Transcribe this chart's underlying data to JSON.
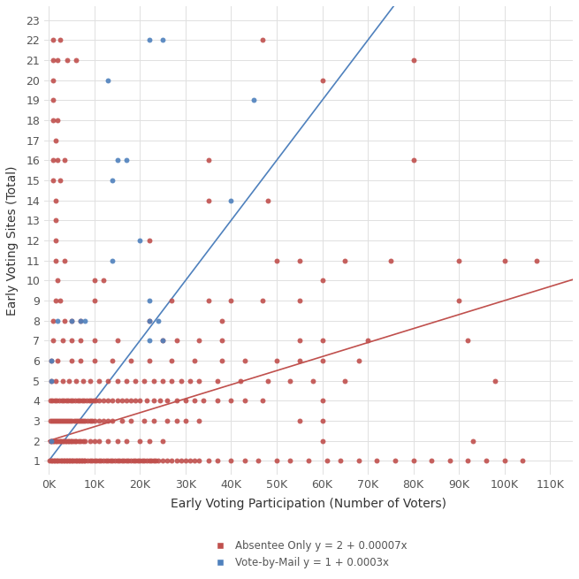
{
  "xlabel": "Early Voting Participation (Number of Voters)",
  "ylabel": "Early Voting Sites (Total)",
  "background_color": "#ffffff",
  "grid_color": "#e0e0e0",
  "red_color": "#c0504d",
  "blue_color": "#4f81bd",
  "red_label": "Absentee Only y = 2 + 0.00007x",
  "blue_label": "Vote-by-Mail y = 1 + 0.0003x",
  "red_intercept": 2,
  "red_slope": 7e-05,
  "blue_intercept": 1,
  "blue_slope": 0.0003,
  "xlim": [
    -1000,
    115000
  ],
  "ylim": [
    0.3,
    23.7
  ],
  "yticks": [
    1,
    2,
    3,
    4,
    5,
    6,
    7,
    8,
    9,
    10,
    11,
    12,
    13,
    14,
    15,
    16,
    17,
    18,
    19,
    20,
    21,
    22,
    23
  ],
  "xtick_vals": [
    0,
    10000,
    20000,
    30000,
    40000,
    50000,
    60000,
    70000,
    80000,
    90000,
    100000,
    110000
  ],
  "xtick_labels": [
    "0K",
    "10K",
    "20K",
    "30K",
    "40K",
    "50K",
    "60K",
    "70K",
    "80K",
    "90K",
    "100K",
    "110K"
  ],
  "red_points": [
    [
      1000,
      22
    ],
    [
      2500,
      22
    ],
    [
      47000,
      22
    ],
    [
      1000,
      21
    ],
    [
      2000,
      21
    ],
    [
      4000,
      21
    ],
    [
      6000,
      21
    ],
    [
      80000,
      21
    ],
    [
      1000,
      20
    ],
    [
      60000,
      20
    ],
    [
      1000,
      19
    ],
    [
      1000,
      18
    ],
    [
      2000,
      18
    ],
    [
      1500,
      17
    ],
    [
      1000,
      16
    ],
    [
      2000,
      16
    ],
    [
      3500,
      16
    ],
    [
      35000,
      16
    ],
    [
      80000,
      16
    ],
    [
      1000,
      15
    ],
    [
      2500,
      15
    ],
    [
      1500,
      14
    ],
    [
      35000,
      14
    ],
    [
      48000,
      14
    ],
    [
      1500,
      13
    ],
    [
      1500,
      12
    ],
    [
      22000,
      12
    ],
    [
      1500,
      11
    ],
    [
      3500,
      11
    ],
    [
      50000,
      11
    ],
    [
      55000,
      11
    ],
    [
      65000,
      11
    ],
    [
      75000,
      11
    ],
    [
      90000,
      11
    ],
    [
      100000,
      11
    ],
    [
      107000,
      11
    ],
    [
      2000,
      10
    ],
    [
      10000,
      10
    ],
    [
      12000,
      10
    ],
    [
      60000,
      10
    ],
    [
      1500,
      9
    ],
    [
      2500,
      9
    ],
    [
      10000,
      9
    ],
    [
      27000,
      9
    ],
    [
      35000,
      9
    ],
    [
      40000,
      9
    ],
    [
      47000,
      9
    ],
    [
      55000,
      9
    ],
    [
      90000,
      9
    ],
    [
      1000,
      8
    ],
    [
      3500,
      8
    ],
    [
      5000,
      8
    ],
    [
      7000,
      8
    ],
    [
      22000,
      8
    ],
    [
      38000,
      8
    ],
    [
      1000,
      7
    ],
    [
      3000,
      7
    ],
    [
      5000,
      7
    ],
    [
      7000,
      7
    ],
    [
      10000,
      7
    ],
    [
      15000,
      7
    ],
    [
      25000,
      7
    ],
    [
      28000,
      7
    ],
    [
      33000,
      7
    ],
    [
      38000,
      7
    ],
    [
      55000,
      7
    ],
    [
      60000,
      7
    ],
    [
      70000,
      7
    ],
    [
      92000,
      7
    ],
    [
      500,
      6
    ],
    [
      2000,
      6
    ],
    [
      5000,
      6
    ],
    [
      7000,
      6
    ],
    [
      10000,
      6
    ],
    [
      14000,
      6
    ],
    [
      18000,
      6
    ],
    [
      22000,
      6
    ],
    [
      27000,
      6
    ],
    [
      32000,
      6
    ],
    [
      38000,
      6
    ],
    [
      43000,
      6
    ],
    [
      50000,
      6
    ],
    [
      55000,
      6
    ],
    [
      60000,
      6
    ],
    [
      68000,
      6
    ],
    [
      500,
      5
    ],
    [
      1500,
      5
    ],
    [
      3000,
      5
    ],
    [
      4500,
      5
    ],
    [
      6000,
      5
    ],
    [
      7500,
      5
    ],
    [
      9000,
      5
    ],
    [
      11000,
      5
    ],
    [
      13000,
      5
    ],
    [
      15000,
      5
    ],
    [
      17000,
      5
    ],
    [
      19000,
      5
    ],
    [
      21000,
      5
    ],
    [
      23000,
      5
    ],
    [
      25000,
      5
    ],
    [
      27000,
      5
    ],
    [
      29000,
      5
    ],
    [
      31000,
      5
    ],
    [
      33000,
      5
    ],
    [
      37000,
      5
    ],
    [
      42000,
      5
    ],
    [
      48000,
      5
    ],
    [
      53000,
      5
    ],
    [
      58000,
      5
    ],
    [
      65000,
      5
    ],
    [
      98000,
      5
    ],
    [
      300,
      4
    ],
    [
      800,
      4
    ],
    [
      1300,
      4
    ],
    [
      1800,
      4
    ],
    [
      2300,
      4
    ],
    [
      2800,
      4
    ],
    [
      3300,
      4
    ],
    [
      3800,
      4
    ],
    [
      4300,
      4
    ],
    [
      4800,
      4
    ],
    [
      5300,
      4
    ],
    [
      5800,
      4
    ],
    [
      6300,
      4
    ],
    [
      6800,
      4
    ],
    [
      7300,
      4
    ],
    [
      7800,
      4
    ],
    [
      8300,
      4
    ],
    [
      8800,
      4
    ],
    [
      9300,
      4
    ],
    [
      9800,
      4
    ],
    [
      10300,
      4
    ],
    [
      11000,
      4
    ],
    [
      12000,
      4
    ],
    [
      13000,
      4
    ],
    [
      14000,
      4
    ],
    [
      15000,
      4
    ],
    [
      16000,
      4
    ],
    [
      17000,
      4
    ],
    [
      18000,
      4
    ],
    [
      19000,
      4
    ],
    [
      20000,
      4
    ],
    [
      21500,
      4
    ],
    [
      23000,
      4
    ],
    [
      24500,
      4
    ],
    [
      26000,
      4
    ],
    [
      28000,
      4
    ],
    [
      30000,
      4
    ],
    [
      32000,
      4
    ],
    [
      34000,
      4
    ],
    [
      37000,
      4
    ],
    [
      40000,
      4
    ],
    [
      43000,
      4
    ],
    [
      47000,
      4
    ],
    [
      60000,
      4
    ],
    [
      300,
      3
    ],
    [
      700,
      3
    ],
    [
      1100,
      3
    ],
    [
      1500,
      3
    ],
    [
      1900,
      3
    ],
    [
      2300,
      3
    ],
    [
      2700,
      3
    ],
    [
      3100,
      3
    ],
    [
      3500,
      3
    ],
    [
      3900,
      3
    ],
    [
      4300,
      3
    ],
    [
      4700,
      3
    ],
    [
      5100,
      3
    ],
    [
      5500,
      3
    ],
    [
      5900,
      3
    ],
    [
      6300,
      3
    ],
    [
      6700,
      3
    ],
    [
      7100,
      3
    ],
    [
      7500,
      3
    ],
    [
      8000,
      3
    ],
    [
      8500,
      3
    ],
    [
      9000,
      3
    ],
    [
      9500,
      3
    ],
    [
      10000,
      3
    ],
    [
      11000,
      3
    ],
    [
      12000,
      3
    ],
    [
      13000,
      3
    ],
    [
      14000,
      3
    ],
    [
      16000,
      3
    ],
    [
      18000,
      3
    ],
    [
      21000,
      3
    ],
    [
      23000,
      3
    ],
    [
      26000,
      3
    ],
    [
      28000,
      3
    ],
    [
      30000,
      3
    ],
    [
      33000,
      3
    ],
    [
      55000,
      3
    ],
    [
      60000,
      3
    ],
    [
      300,
      2
    ],
    [
      600,
      2
    ],
    [
      900,
      2
    ],
    [
      1200,
      2
    ],
    [
      1500,
      2
    ],
    [
      1800,
      2
    ],
    [
      2100,
      2
    ],
    [
      2400,
      2
    ],
    [
      2700,
      2
    ],
    [
      3000,
      2
    ],
    [
      3300,
      2
    ],
    [
      3600,
      2
    ],
    [
      3900,
      2
    ],
    [
      4200,
      2
    ],
    [
      4500,
      2
    ],
    [
      4800,
      2
    ],
    [
      5100,
      2
    ],
    [
      5400,
      2
    ],
    [
      5700,
      2
    ],
    [
      6000,
      2
    ],
    [
      6500,
      2
    ],
    [
      7000,
      2
    ],
    [
      7500,
      2
    ],
    [
      8000,
      2
    ],
    [
      9000,
      2
    ],
    [
      10000,
      2
    ],
    [
      11000,
      2
    ],
    [
      13000,
      2
    ],
    [
      15000,
      2
    ],
    [
      17000,
      2
    ],
    [
      20000,
      2
    ],
    [
      22000,
      2
    ],
    [
      25000,
      2
    ],
    [
      60000,
      2
    ],
    [
      93000,
      2
    ],
    [
      200,
      1
    ],
    [
      500,
      1
    ],
    [
      800,
      1
    ],
    [
      1100,
      1
    ],
    [
      1400,
      1
    ],
    [
      1700,
      1
    ],
    [
      2000,
      1
    ],
    [
      2300,
      1
    ],
    [
      2600,
      1
    ],
    [
      2900,
      1
    ],
    [
      3200,
      1
    ],
    [
      3500,
      1
    ],
    [
      3800,
      1
    ],
    [
      4100,
      1
    ],
    [
      4400,
      1
    ],
    [
      4700,
      1
    ],
    [
      5000,
      1
    ],
    [
      5300,
      1
    ],
    [
      5600,
      1
    ],
    [
      5900,
      1
    ],
    [
      6200,
      1
    ],
    [
      6500,
      1
    ],
    [
      6800,
      1
    ],
    [
      7100,
      1
    ],
    [
      7400,
      1
    ],
    [
      7700,
      1
    ],
    [
      8000,
      1
    ],
    [
      8500,
      1
    ],
    [
      9000,
      1
    ],
    [
      9500,
      1
    ],
    [
      10000,
      1
    ],
    [
      10500,
      1
    ],
    [
      11000,
      1
    ],
    [
      11500,
      1
    ],
    [
      12000,
      1
    ],
    [
      12500,
      1
    ],
    [
      13000,
      1
    ],
    [
      13500,
      1
    ],
    [
      14000,
      1
    ],
    [
      14500,
      1
    ],
    [
      15000,
      1
    ],
    [
      15500,
      1
    ],
    [
      16000,
      1
    ],
    [
      16500,
      1
    ],
    [
      17000,
      1
    ],
    [
      17500,
      1
    ],
    [
      18000,
      1
    ],
    [
      18500,
      1
    ],
    [
      19000,
      1
    ],
    [
      19500,
      1
    ],
    [
      20000,
      1
    ],
    [
      20500,
      1
    ],
    [
      21000,
      1
    ],
    [
      21500,
      1
    ],
    [
      22000,
      1
    ],
    [
      22500,
      1
    ],
    [
      23000,
      1
    ],
    [
      23500,
      1
    ],
    [
      24000,
      1
    ],
    [
      25000,
      1
    ],
    [
      26000,
      1
    ],
    [
      27000,
      1
    ],
    [
      28000,
      1
    ],
    [
      29000,
      1
    ],
    [
      30000,
      1
    ],
    [
      31000,
      1
    ],
    [
      32000,
      1
    ],
    [
      33000,
      1
    ],
    [
      35000,
      1
    ],
    [
      37000,
      1
    ],
    [
      40000,
      1
    ],
    [
      43000,
      1
    ],
    [
      46000,
      1
    ],
    [
      50000,
      1
    ],
    [
      53000,
      1
    ],
    [
      57000,
      1
    ],
    [
      61000,
      1
    ],
    [
      64000,
      1
    ],
    [
      68000,
      1
    ],
    [
      72000,
      1
    ],
    [
      76000,
      1
    ],
    [
      80000,
      1
    ],
    [
      84000,
      1
    ],
    [
      88000,
      1
    ],
    [
      92000,
      1
    ],
    [
      96000,
      1
    ],
    [
      100000,
      1
    ],
    [
      104000,
      1
    ]
  ],
  "blue_points": [
    [
      22000,
      22
    ],
    [
      25000,
      22
    ],
    [
      13000,
      20
    ],
    [
      15000,
      16
    ],
    [
      17000,
      16
    ],
    [
      14000,
      15
    ],
    [
      40000,
      14
    ],
    [
      45000,
      19
    ],
    [
      20000,
      12
    ],
    [
      14000,
      11
    ],
    [
      22000,
      9
    ],
    [
      2000,
      8
    ],
    [
      5000,
      8
    ],
    [
      7000,
      8
    ],
    [
      8000,
      8
    ],
    [
      22000,
      8
    ],
    [
      24000,
      8
    ],
    [
      22000,
      7
    ],
    [
      25000,
      7
    ],
    [
      500,
      6
    ],
    [
      500,
      5
    ],
    [
      500,
      2
    ]
  ],
  "marker_size": 18,
  "line_width": 1.2,
  "figsize": [
    6.55,
    6.55
  ],
  "dpi": 100,
  "font_color": "#555555",
  "label_color": "#333333",
  "legend_fontsize": 8.5,
  "axis_fontsize": 10,
  "tick_fontsize": 9
}
